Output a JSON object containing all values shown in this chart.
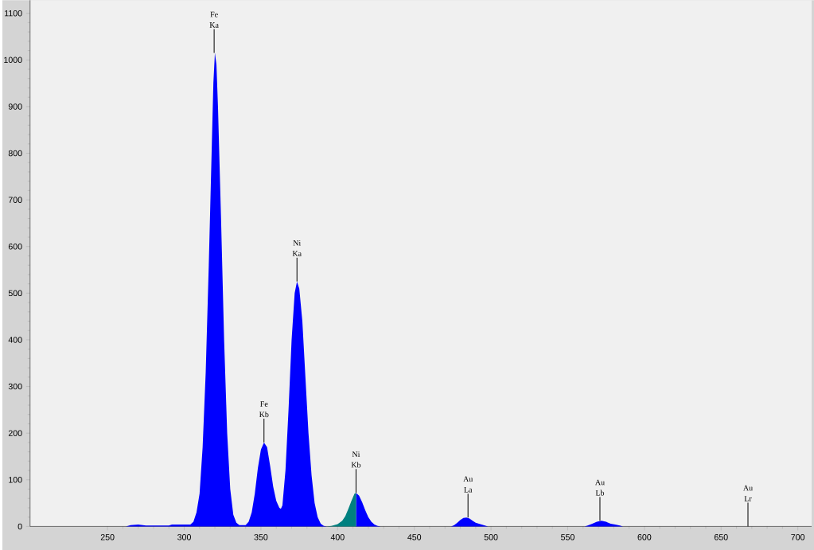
{
  "chart_data": {
    "type": "area",
    "xlim": [
      199.5,
      709
    ],
    "ylim": [
      0,
      1128
    ],
    "xticks": [
      250,
      300,
      350,
      400,
      450,
      500,
      550,
      600,
      650,
      700
    ],
    "yticks": [
      0,
      100,
      200,
      300,
      400,
      500,
      600,
      700,
      800,
      900,
      1000,
      1100
    ],
    "series": [
      {
        "color": "#0000ff",
        "x": [
          200,
          262,
          265,
          270,
          275,
          290,
          292,
          304,
          306,
          308,
          310,
          312,
          314,
          316,
          318,
          319,
          320,
          321,
          322,
          324,
          326,
          328,
          330,
          332,
          334,
          336,
          340,
          342,
          344,
          346,
          348,
          350,
          352,
          354,
          356,
          358,
          360,
          362,
          363,
          364,
          366,
          368,
          370,
          372,
          373.5,
          375,
          377,
          379,
          381,
          383,
          385,
          387,
          389,
          391,
          393,
          402,
          412,
          414,
          416,
          418,
          420,
          422,
          424,
          426,
          428,
          474,
          476,
          478,
          480,
          482,
          484,
          486,
          488,
          490,
          493,
          496,
          498,
          561,
          563,
          566,
          569,
          572,
          575,
          578,
          581,
          584,
          586,
          709
        ],
        "values": [
          0,
          0,
          3,
          4,
          2,
          2,
          4,
          4,
          10,
          30,
          70,
          170,
          330,
          560,
          820,
          950,
          1015,
          990,
          900,
          660,
          400,
          200,
          80,
          25,
          8,
          3,
          3,
          10,
          30,
          70,
          125,
          165,
          180,
          170,
          130,
          85,
          55,
          40,
          38,
          45,
          120,
          250,
          400,
          500,
          525,
          510,
          440,
          320,
          200,
          110,
          50,
          20,
          6,
          1,
          0,
          null,
          72,
          66,
          52,
          35,
          20,
          10,
          4,
          1,
          0,
          0,
          3,
          8,
          14,
          18,
          19,
          17,
          12,
          8,
          5,
          2,
          0,
          0,
          2,
          6,
          10,
          12,
          10,
          6,
          4,
          2,
          0,
          0
        ]
      },
      {
        "color": "#008080",
        "x": [
          393,
          396,
          400,
          403,
          405,
          407,
          409,
          411,
          412
        ],
        "values": [
          0,
          1,
          5,
          12,
          22,
          38,
          55,
          70,
          72
        ]
      }
    ],
    "annotations": [
      {
        "text": "Fe Ka",
        "x": 319.5,
        "y": 1015
      },
      {
        "text": "Fe Kb",
        "x": 352,
        "y": 180
      },
      {
        "text": "Ni Ka",
        "x": 373.5,
        "y": 525
      },
      {
        "text": "Ni Kb",
        "x": 412,
        "y": 72
      },
      {
        "text": "Au La",
        "x": 485,
        "y": 19
      },
      {
        "text": "Au Lb",
        "x": 571,
        "y": 12
      },
      {
        "text": "Au Lr",
        "x": 667.5,
        "y": 0
      }
    ]
  }
}
